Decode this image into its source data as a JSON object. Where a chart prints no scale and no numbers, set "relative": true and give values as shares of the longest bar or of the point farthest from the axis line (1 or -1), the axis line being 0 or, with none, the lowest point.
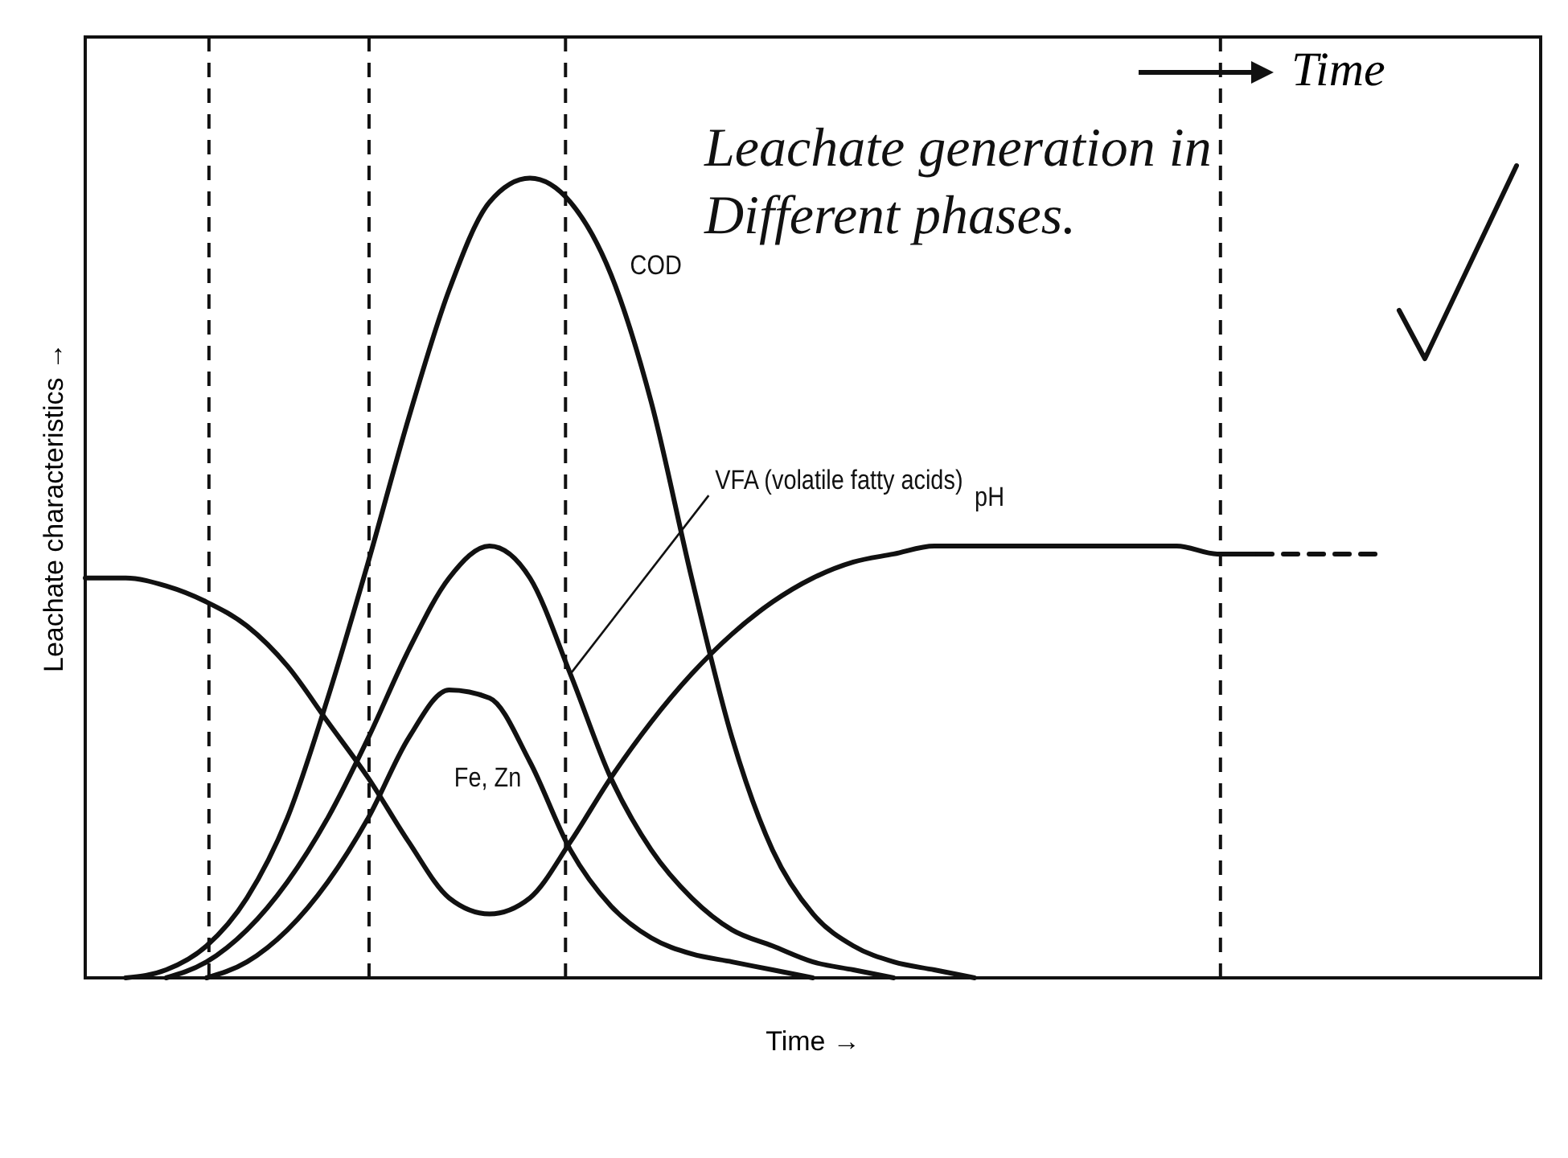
{
  "chart_data": {
    "type": "line",
    "relative": true,
    "xlabel": "Time →",
    "ylabel": "Leachate characteristics →",
    "annotations": [
      "Time",
      "Leachate generation in Different phases."
    ],
    "categories": [
      null,
      null,
      null,
      null,
      null,
      null,
      null,
      null,
      null,
      null,
      null,
      null,
      null,
      null,
      null,
      null,
      null,
      null,
      null,
      null,
      null,
      null,
      null,
      null,
      null,
      null,
      null,
      null,
      null,
      null,
      null,
      null,
      null,
      null,
      null,
      null,
      null
    ],
    "series": [
      {
        "name": "COD",
        "color": "#111111",
        "line_style": "solid",
        "values": [
          null,
          0,
          0.01,
          0.04,
          0.1,
          0.2,
          0.35,
          0.52,
          0.7,
          0.86,
          0.97,
          1,
          0.97,
          0.88,
          0.72,
          0.5,
          0.3,
          0.16,
          0.08,
          0.04,
          0.02,
          0.01,
          0,
          null,
          null,
          null,
          null,
          null,
          null,
          null,
          null,
          null,
          null,
          null,
          null,
          null,
          null
        ]
      },
      {
        "name": "VFA (volatile fatty acids)",
        "color": "#111111",
        "line_style": "solid",
        "values": [
          null,
          null,
          0,
          0.02,
          0.06,
          0.12,
          0.2,
          0.3,
          0.41,
          0.5,
          0.54,
          0.5,
          0.38,
          0.25,
          0.16,
          0.1,
          0.06,
          0.04,
          0.02,
          0.01,
          0,
          null,
          null,
          null,
          null,
          null,
          null,
          null,
          null,
          null,
          null,
          null,
          null,
          null,
          null,
          null,
          null
        ]
      },
      {
        "name": "Fe, Zn",
        "color": "#111111",
        "line_style": "solid",
        "values": [
          null,
          null,
          null,
          0,
          0.02,
          0.06,
          0.12,
          0.2,
          0.3,
          0.36,
          0.35,
          0.27,
          0.16,
          0.09,
          0.05,
          0.03,
          0.02,
          0.01,
          0,
          null,
          null,
          null,
          null,
          null,
          null,
          null,
          null,
          null,
          null,
          null,
          null,
          null,
          null,
          null,
          null,
          null,
          null
        ]
      },
      {
        "name": "pH",
        "color": "#111111",
        "line_style": "solid",
        "values": [
          0.5,
          0.5,
          0.49,
          0.47,
          0.44,
          0.39,
          0.32,
          0.25,
          0.17,
          0.1,
          0.08,
          0.1,
          0.17,
          0.25,
          0.32,
          0.38,
          0.43,
          0.47,
          0.5,
          0.52,
          0.53,
          0.54,
          0.54,
          0.54,
          0.54,
          0.54,
          0.54,
          0.54,
          0.53,
          0.53,
          null,
          null,
          null,
          null,
          null,
          null,
          null
        ]
      },
      {
        "color": "#111111",
        "line_style": "dashed",
        "values": [
          null,
          null,
          null,
          null,
          null,
          null,
          null,
          null,
          null,
          null,
          null,
          null,
          null,
          null,
          null,
          null,
          null,
          null,
          null,
          null,
          null,
          null,
          null,
          null,
          null,
          null,
          null,
          null,
          null,
          0.53,
          0.53,
          0.53,
          0.53,
          null,
          null,
          null,
          null
        ]
      }
    ]
  }
}
